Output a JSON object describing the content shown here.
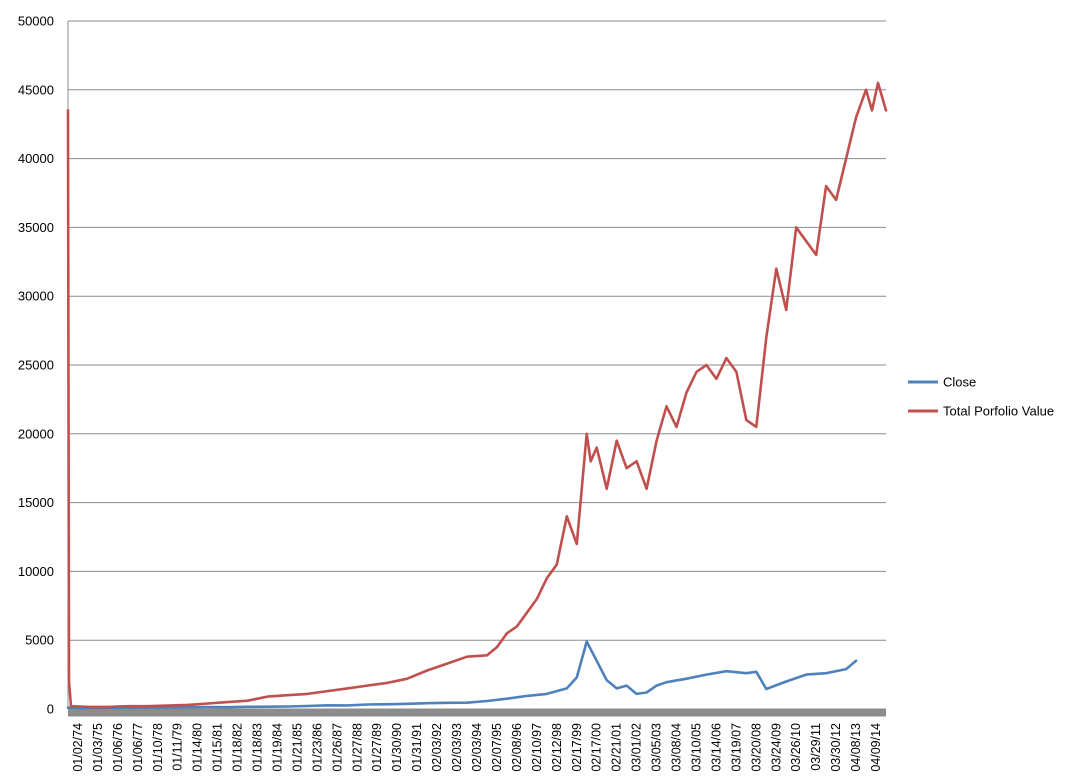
{
  "chart_data": {
    "type": "line",
    "title": "",
    "xlabel": "",
    "ylabel": "",
    "ylim": [
      0,
      50000
    ],
    "yticks": [
      0,
      5000,
      10000,
      15000,
      20000,
      25000,
      30000,
      35000,
      40000,
      45000,
      50000
    ],
    "grid": "horizontal",
    "legend": "right",
    "x_tick_labels": [
      "01/02/74",
      "01/03/75",
      "01/06/76",
      "01/06/77",
      "01/10/78",
      "01/11/79",
      "01/14/80",
      "01/15/81",
      "01/18/82",
      "01/18/83",
      "01/19/84",
      "01/21/85",
      "01/23/86",
      "01/26/87",
      "01/27/88",
      "01/27/89",
      "01/30/90",
      "01/31/91",
      "02/03/92",
      "02/03/93",
      "02/03/94",
      "02/07/95",
      "02/08/96",
      "02/10/97",
      "02/12/98",
      "02/17/99",
      "02/17/00",
      "02/21/01",
      "03/01/02",
      "03/05/03",
      "03/08/04",
      "03/10/05",
      "03/14/06",
      "03/19/07",
      "03/20/08",
      "03/24/09",
      "03/26/10",
      "03/29/11",
      "03/30/12",
      "04/08/13",
      "04/09/14"
    ],
    "x_range": [
      0,
      41
    ],
    "series": [
      {
        "name": "Close",
        "color": "#4f81bd",
        "x": [
          0,
          1,
          2,
          3,
          4,
          5,
          6,
          7,
          8,
          9,
          10,
          11,
          12,
          13,
          14,
          15,
          16,
          17,
          18,
          19,
          20,
          21,
          22,
          23,
          24,
          25,
          25.5,
          26,
          26.5,
          27,
          27.5,
          28,
          28.5,
          29,
          29.5,
          30,
          31,
          32,
          33,
          34,
          34.5,
          35,
          36,
          37,
          38,
          39,
          39.5
        ],
        "y": [
          95,
          80,
          95,
          95,
          100,
          110,
          130,
          140,
          130,
          160,
          165,
          180,
          220,
          270,
          260,
          330,
          340,
          380,
          420,
          450,
          460,
          580,
          750,
          950,
          1100,
          1500,
          2300,
          4900,
          3500,
          2100,
          1500,
          1700,
          1100,
          1200,
          1700,
          1950,
          2200,
          2500,
          2750,
          2600,
          2700,
          1450,
          2000,
          2500,
          2600,
          2900,
          3500
        ]
      },
      {
        "name": "Total Porfolio Value",
        "color": "#c0504d",
        "x": [
          0,
          0.05,
          0.15,
          1,
          2,
          3,
          4,
          5,
          6,
          7,
          8,
          9,
          10,
          11,
          12,
          13,
          14,
          15,
          16,
          17,
          18,
          19,
          20,
          21,
          21.5,
          22,
          22.5,
          23,
          23.5,
          24,
          24.5,
          25,
          25.5,
          26,
          26.2,
          26.5,
          27,
          27.5,
          28,
          28.5,
          29,
          29.5,
          30,
          30.5,
          31,
          31.5,
          32,
          32.5,
          33,
          33.5,
          34,
          34.5,
          35,
          35.5,
          36,
          36.5,
          37,
          37.5,
          38,
          38.5,
          39,
          39.5,
          40,
          40.3,
          40.6,
          40.9,
          41
        ],
        "y": [
          43500,
          2000,
          200,
          150,
          150,
          200,
          200,
          250,
          300,
          400,
          500,
          600,
          900,
          1000,
          1100,
          1300,
          1500,
          1700,
          1900,
          2200,
          2800,
          3300,
          3800,
          3900,
          4500,
          5500,
          6000,
          7000,
          8000,
          9500,
          10500,
          14000,
          12000,
          20000,
          18000,
          19000,
          16000,
          19500,
          17500,
          18000,
          16000,
          19500,
          22000,
          20500,
          23000,
          24500,
          25000,
          24000,
          25500,
          24500,
          21000,
          20500,
          27000,
          32000,
          29000,
          35000,
          34000,
          33000,
          38000,
          37000,
          40000,
          43000,
          45000,
          43500,
          45500,
          44000,
          43500
        ]
      }
    ]
  }
}
